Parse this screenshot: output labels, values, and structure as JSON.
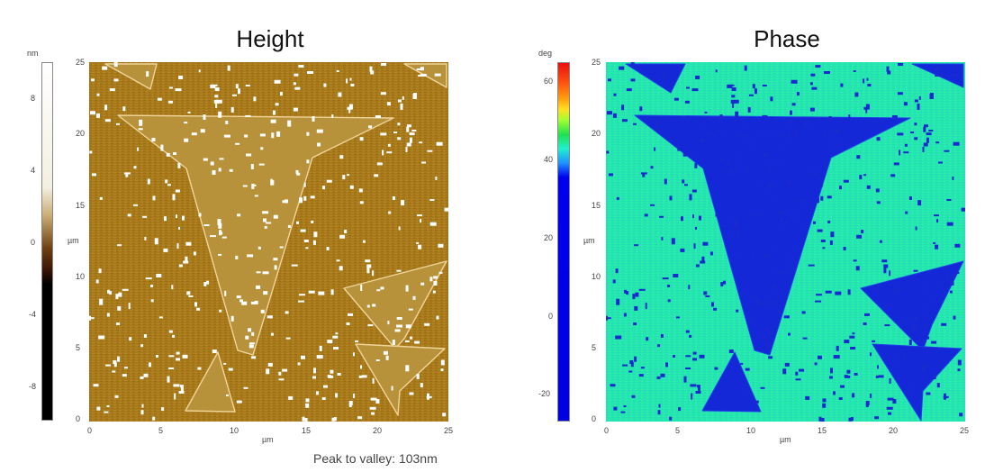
{
  "panels": {
    "height": {
      "title": "Height",
      "colorbar_unit": "nm",
      "colorbar_ticks": [
        "8",
        "4",
        "0",
        "-4",
        "-8"
      ],
      "axis_unit_x": "µm",
      "axis_unit_y": "µm",
      "x_ticks": [
        "0",
        "5",
        "10",
        "15",
        "20",
        "25"
      ],
      "y_ticks": [
        "0",
        "5",
        "10",
        "15",
        "20",
        "25"
      ],
      "colors": {
        "background": "#a87a1a",
        "feature": "#f0d49a",
        "particle": "#ffffff"
      }
    },
    "phase": {
      "title": "Phase",
      "colorbar_unit": "deg",
      "colorbar_ticks": [
        "60",
        "40",
        "20",
        "0",
        "-20"
      ],
      "axis_unit_x": "µm",
      "axis_unit_y": "µm",
      "x_ticks": [
        "0",
        "5",
        "10",
        "15",
        "20",
        "25"
      ],
      "y_ticks": [
        "0",
        "5",
        "10",
        "15",
        "20",
        "25"
      ],
      "colors": {
        "background": "#22e8b0",
        "feature": "#1428d8",
        "particle": "#1a2ad0"
      }
    }
  },
  "footer": {
    "peak_to_valley": "Peak to valley: 103nm"
  }
}
